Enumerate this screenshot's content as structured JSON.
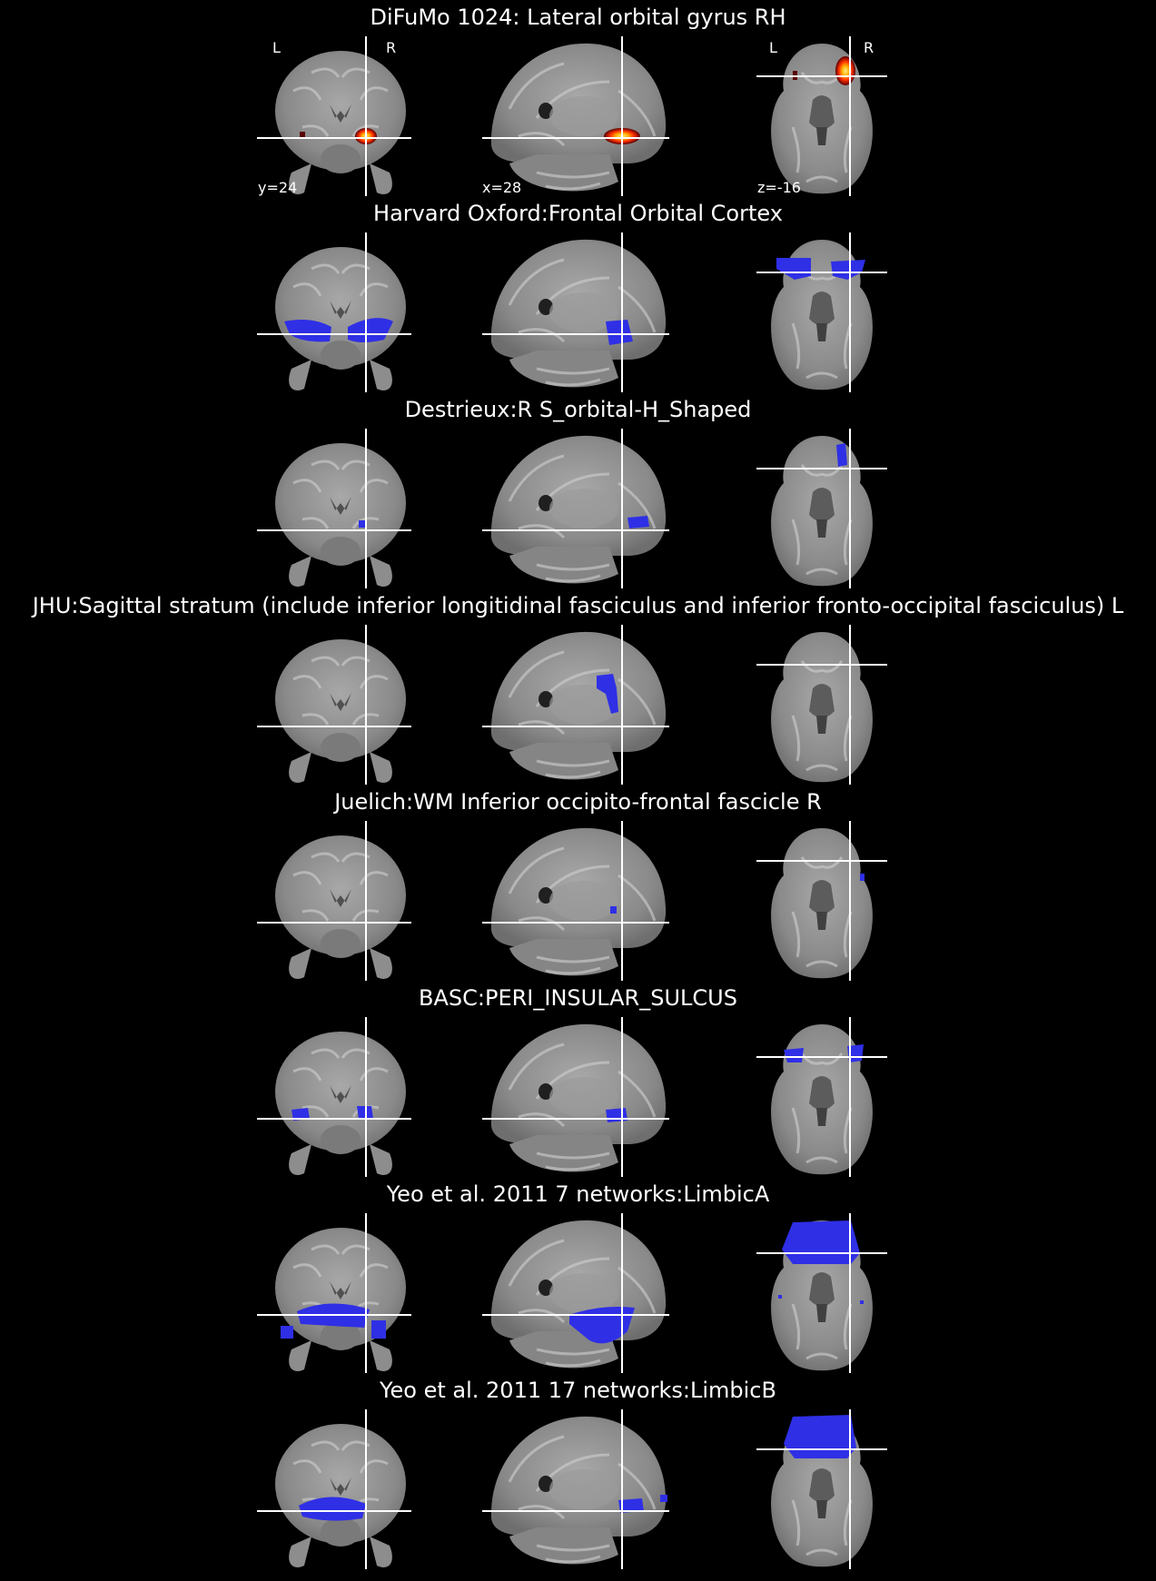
{
  "panel_slices": {
    "coronal": {
      "orient_left": "L",
      "orient_right": "R",
      "coord": "y=24"
    },
    "sagittal": {
      "coord": "x=28"
    },
    "axial": {
      "orient_left": "L",
      "orient_right": "R",
      "coord": "z=-16"
    }
  },
  "colors": {
    "background": "#000000",
    "crosshair": "#ffffff",
    "atlas_overlay": "#2f2fe6",
    "heat_dark": "#5a0000",
    "heat_mid": "#ff3000",
    "heat_hot": "#ffee88"
  },
  "rows": [
    {
      "title": "DiFuMo 1024: Lateral orbital gyrus RH",
      "overlay": "heat",
      "icon": "brain-slices-icon"
    },
    {
      "title": "Harvard Oxford:Frontal Orbital Cortex",
      "overlay": "atlas",
      "icon": "brain-slices-icon"
    },
    {
      "title": "Destrieux:R S_orbital-H_Shaped",
      "overlay": "atlas",
      "icon": "brain-slices-icon"
    },
    {
      "title": "JHU:Sagittal stratum (include inferior longitidinal fasciculus and inferior fronto-occipital fasciculus) L",
      "overlay": "atlas",
      "icon": "brain-slices-icon"
    },
    {
      "title": "Juelich:WM Inferior occipito-frontal fascicle R",
      "overlay": "atlas",
      "icon": "brain-slices-icon"
    },
    {
      "title": "BASC:PERI_INSULAR_SULCUS",
      "overlay": "atlas",
      "icon": "brain-slices-icon"
    },
    {
      "title": "Yeo et al. 2011 7 networks:LimbicA",
      "overlay": "atlas",
      "icon": "brain-slices-icon"
    },
    {
      "title": "Yeo et al. 2011 17 networks:LimbicB",
      "overlay": "atlas",
      "icon": "brain-slices-icon"
    }
  ]
}
